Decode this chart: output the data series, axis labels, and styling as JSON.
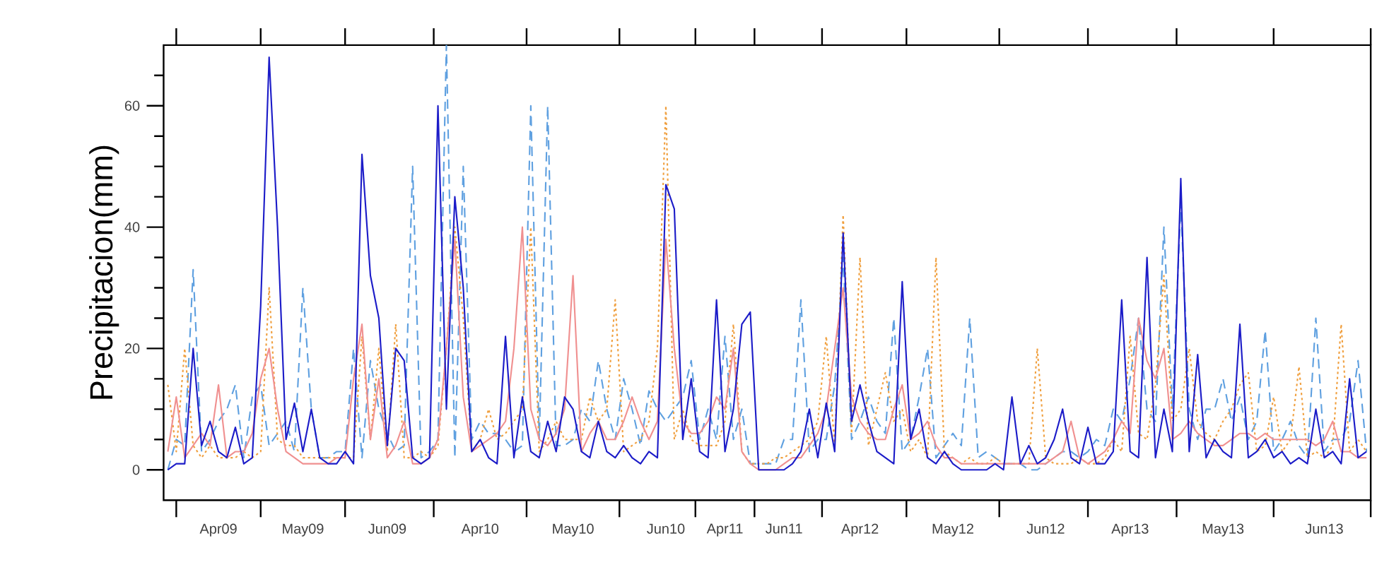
{
  "chart_data": {
    "type": "line",
    "ylabel": "Precipitacion(mm)",
    "categories": [
      null,
      null,
      null,
      null,
      null,
      null,
      "Apr09",
      null,
      null,
      null,
      null,
      null,
      null,
      null,
      null,
      null,
      "May09",
      null,
      null,
      null,
      null,
      null,
      null,
      null,
      null,
      null,
      "Jun09",
      null,
      null,
      null,
      null,
      null,
      null,
      null,
      null,
      null,
      null,
      "Apr10",
      null,
      null,
      null,
      null,
      null,
      null,
      null,
      null,
      null,
      null,
      "May10",
      null,
      null,
      null,
      null,
      null,
      null,
      null,
      null,
      null,
      null,
      "Jun10",
      null,
      null,
      null,
      null,
      null,
      null,
      "Apr11",
      null,
      null,
      null,
      null,
      null,
      null,
      "Jun11",
      null,
      null,
      null,
      null,
      null,
      null,
      null,
      null,
      "Apr12",
      null,
      null,
      null,
      null,
      null,
      null,
      null,
      null,
      null,
      null,
      "May12",
      null,
      null,
      null,
      null,
      null,
      null,
      null,
      null,
      null,
      null,
      "Jun12",
      null,
      null,
      null,
      null,
      null,
      null,
      null,
      null,
      null,
      "Apr13",
      null,
      null,
      null,
      null,
      null,
      null,
      null,
      null,
      null,
      null,
      "May13",
      null,
      null,
      null,
      null,
      null,
      null,
      null,
      null,
      null,
      null,
      null,
      "Jun13",
      null,
      null,
      null,
      null,
      null
    ],
    "ylim": [
      -5,
      70
    ],
    "yticks": [
      0,
      {
        "value": 5,
        "label": null
      },
      {
        "value": 10,
        "label": null
      },
      {
        "value": 15,
        "label": null
      },
      20,
      {
        "value": 25,
        "label": null
      },
      {
        "value": 30,
        "label": null
      },
      {
        "value": 35,
        "label": null
      },
      40,
      {
        "value": 45,
        "label": null
      },
      {
        "value": 50,
        "label": null
      },
      {
        "value": 55,
        "label": null
      },
      60,
      {
        "value": 65,
        "label": null
      }
    ],
    "grid": false,
    "marker": "none",
    "series": [
      {
        "color": "#5fa0e0",
        "line_style": "dashed",
        "values": [
          0,
          5,
          4,
          33,
          3,
          5,
          8,
          10,
          14,
          2,
          12,
          14,
          4,
          6,
          8,
          3,
          30,
          10,
          2,
          2,
          3,
          3,
          20,
          2,
          18,
          10,
          6,
          3,
          4,
          50,
          2,
          3,
          5,
          70,
          2,
          50,
          5,
          8,
          6,
          6,
          5,
          3,
          4,
          60,
          5,
          60,
          4,
          4,
          5,
          10,
          8,
          18,
          10,
          5,
          15,
          10,
          4,
          13,
          10,
          8,
          10,
          12,
          18,
          5,
          10,
          5,
          22,
          5,
          10,
          1,
          1,
          1,
          1,
          5,
          5,
          28,
          3,
          5,
          5,
          14,
          35,
          5,
          8,
          12,
          8,
          6,
          25,
          3,
          5,
          12,
          20,
          2,
          4,
          6,
          4,
          25,
          2,
          3,
          2,
          1,
          1,
          1,
          0,
          0,
          1,
          2,
          3,
          3,
          2,
          3,
          5,
          4,
          10,
          8,
          15,
          25,
          10,
          8,
          40,
          10,
          44,
          10,
          5,
          10,
          10,
          15,
          8,
          12,
          5,
          8,
          23,
          3,
          5,
          8,
          4,
          2,
          25,
          3,
          5,
          5,
          8,
          18,
          3
        ]
      },
      {
        "color": "#f0a040",
        "line_style": "dotted",
        "values": [
          14,
          3,
          20,
          4,
          2,
          4,
          2,
          2,
          2,
          3,
          2,
          3,
          30,
          5,
          4,
          4,
          2,
          2,
          2,
          2,
          2,
          2,
          2,
          22,
          5,
          20,
          3,
          24,
          2,
          2,
          3,
          2,
          4,
          20,
          40,
          25,
          3,
          5,
          10,
          5,
          6,
          8,
          10,
          40,
          3,
          5,
          8,
          5,
          5,
          5,
          12,
          8,
          10,
          28,
          3,
          4,
          5,
          8,
          20,
          60,
          5,
          10,
          5,
          4,
          4,
          4,
          8,
          24,
          3,
          1,
          1,
          1,
          2,
          2,
          3,
          4,
          5,
          8,
          22,
          4,
          42,
          6,
          35,
          4,
          10,
          16,
          8,
          10,
          3,
          5,
          2,
          35,
          3,
          2,
          1,
          2,
          1,
          1,
          2,
          1,
          1,
          1,
          1,
          20,
          2,
          1,
          1,
          1,
          2,
          1,
          1,
          2,
          5,
          3,
          22,
          6,
          5,
          14,
          32,
          8,
          10,
          20,
          8,
          6,
          5,
          8,
          10,
          14,
          16,
          3,
          4,
          12,
          3,
          5,
          17,
          2,
          3,
          2,
          4,
          24,
          3,
          5,
          3
        ]
      },
      {
        "color": "#f09090",
        "line_style": "solid",
        "values": [
          3,
          12,
          2,
          4,
          6,
          4,
          14,
          2,
          3,
          3,
          6,
          15,
          20,
          10,
          3,
          2,
          1,
          1,
          1,
          1,
          2,
          2,
          15,
          24,
          5,
          15,
          2,
          4,
          8,
          1,
          1,
          2,
          5,
          20,
          38,
          12,
          3,
          4,
          5,
          6,
          8,
          20,
          40,
          10,
          5,
          4,
          6,
          10,
          32,
          3,
          6,
          8,
          5,
          5,
          8,
          12,
          8,
          5,
          8,
          38,
          20,
          8,
          6,
          6,
          8,
          12,
          10,
          20,
          3,
          1,
          0,
          0,
          0,
          1,
          2,
          2,
          4,
          6,
          10,
          20,
          30,
          12,
          8,
          6,
          5,
          5,
          10,
          14,
          5,
          6,
          8,
          4,
          2,
          2,
          1,
          1,
          1,
          1,
          1,
          1,
          1,
          1,
          1,
          1,
          1,
          2,
          3,
          8,
          2,
          1,
          2,
          3,
          5,
          8,
          6,
          25,
          18,
          15,
          20,
          5,
          6,
          8,
          6,
          5,
          4,
          4,
          5,
          6,
          6,
          5,
          6,
          5,
          5,
          5,
          5,
          5,
          4,
          5,
          8,
          3,
          3,
          2,
          2
        ]
      },
      {
        "color": "#1c1cc8",
        "line_style": "solid",
        "values": [
          0,
          1,
          1,
          20,
          4,
          8,
          3,
          2,
          7,
          1,
          2,
          27,
          68,
          40,
          5,
          11,
          3,
          10,
          2,
          1,
          1,
          3,
          1,
          52,
          32,
          25,
          4,
          20,
          18,
          2,
          1,
          2,
          60,
          10,
          45,
          30,
          3,
          5,
          2,
          1,
          22,
          2,
          12,
          3,
          2,
          8,
          3,
          12,
          10,
          3,
          2,
          8,
          3,
          2,
          4,
          2,
          1,
          3,
          2,
          47,
          43,
          5,
          15,
          3,
          2,
          28,
          3,
          10,
          24,
          26,
          0,
          0,
          0,
          0,
          1,
          3,
          10,
          2,
          11,
          3,
          39,
          8,
          14,
          8,
          3,
          2,
          1,
          31,
          5,
          10,
          2,
          1,
          3,
          1,
          0,
          0,
          0,
          0,
          1,
          0,
          12,
          1,
          4,
          1,
          2,
          5,
          10,
          2,
          1,
          7,
          1,
          1,
          3,
          28,
          3,
          2,
          35,
          2,
          10,
          3,
          48,
          3,
          19,
          2,
          5,
          3,
          2,
          24,
          2,
          3,
          5,
          2,
          3,
          1,
          2,
          1,
          10,
          2,
          3,
          1,
          15,
          2,
          3
        ]
      }
    ]
  }
}
